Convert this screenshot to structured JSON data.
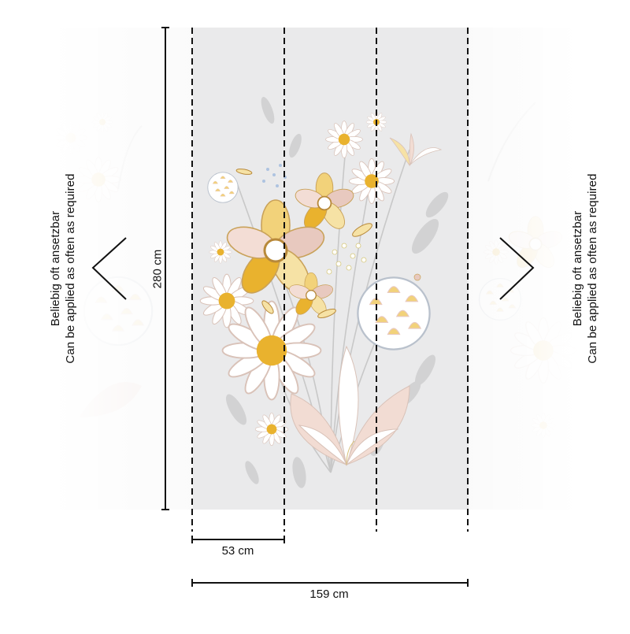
{
  "left_note": {
    "line1": "Beliebig oft ansetzbar",
    "line2": "Can be applied as often as required"
  },
  "right_note": {
    "line1": "Beliebig oft ansetzbar",
    "line2": "Can be applied as often as required"
  },
  "height_label": "280 cm",
  "panel_width_label": "53 cm",
  "total_width_label": "159 cm",
  "colors": {
    "panel_bg": "#eaeaeb",
    "ghost_bg": "#f6f6f6",
    "accent_yellow": "#e9b22e",
    "petal_pink": "#e8c9bf",
    "leaf_grey": "#c9c9c9",
    "line": "#111111"
  }
}
